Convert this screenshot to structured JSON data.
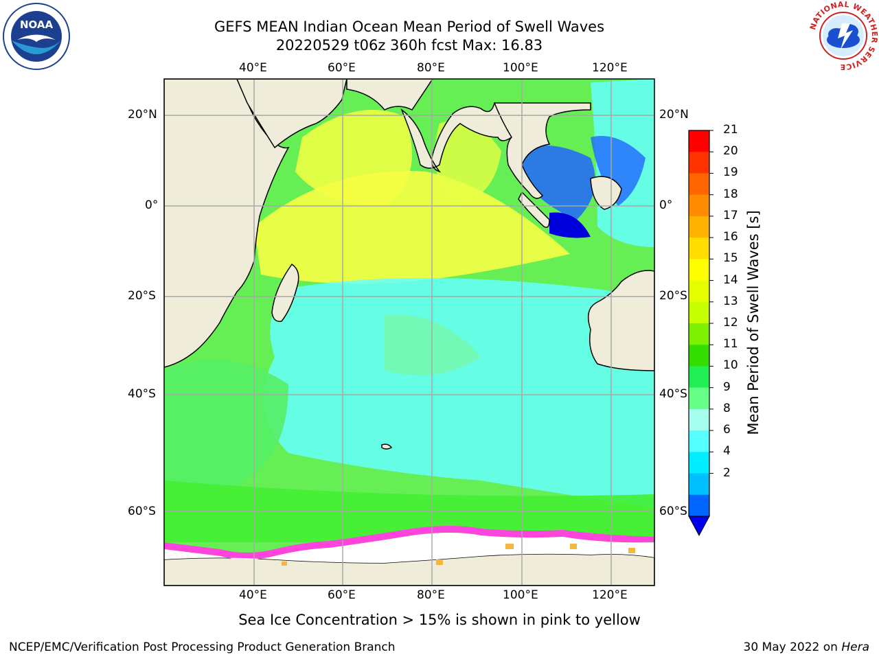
{
  "header": {
    "title": "GEFS MEAN Indian Ocean Mean Period of Swell Waves",
    "subtitle": "20220529 t06z 360h fcst   Max: 16.83"
  },
  "map": {
    "lon_labels": [
      "40°E",
      "60°E",
      "80°E",
      "100°E",
      "120°E"
    ],
    "lat_labels": [
      "20°N",
      "0°",
      "20°S",
      "40°S",
      "60°S"
    ],
    "ocean_color": "#66ee55",
    "land_color": "#efedd9",
    "ice_color": "#ffffff",
    "ice_edge_color": "#ff44dd"
  },
  "colorbar": {
    "label": "Mean Period of Swell Waves [s]",
    "ticks": [
      "21",
      "20",
      "19",
      "18",
      "17",
      "16",
      "15",
      "14",
      "13",
      "12",
      "11",
      "10",
      "9",
      "8",
      "6",
      "4",
      "2"
    ],
    "colors": [
      "#ff0000",
      "#ff3300",
      "#ff6600",
      "#ff8c00",
      "#ffb300",
      "#ffdd00",
      "#ffff00",
      "#e6ff00",
      "#c6ff00",
      "#7cf000",
      "#33dd00",
      "#22ee55",
      "#66ff88",
      "#a6ffee",
      "#55ffff",
      "#00eeff",
      "#00bfff",
      "#0066ff"
    ],
    "extend_color": "#0000ee"
  },
  "logos": {
    "noaa": "NOAA",
    "nws": "NATIONAL WEATHER SERVICE"
  },
  "footer": {
    "note": "Sea Ice Concentration > 15% is shown in pink to yellow",
    "credit": "NCEP/EMC/Verification Post Processing Product Generation Branch",
    "date": "30 May 2022 on",
    "host": "Hera"
  }
}
